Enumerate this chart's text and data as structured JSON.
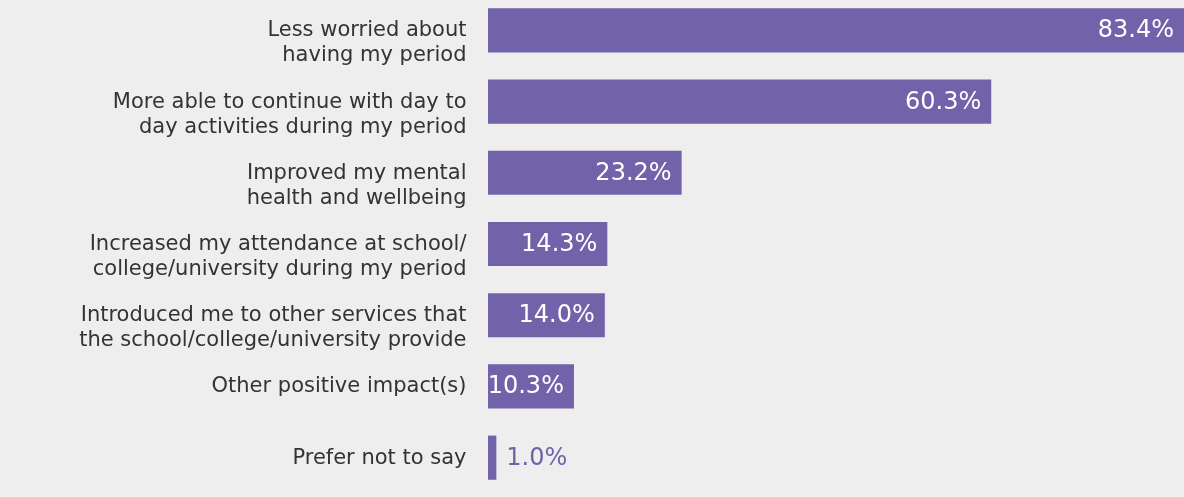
{
  "chart_data": {
    "type": "bar",
    "orientation": "horizontal",
    "categories": [
      "Less worried about having my period",
      "More able to continue with day to day activities during my period",
      "Improved my mental health and wellbeing",
      "Increased my attendance at school/ college/university during my period",
      "Introduced me to other services that the school/college/university provide",
      "Other positive impact(s)",
      "Prefer not to say"
    ],
    "values": [
      83.4,
      60.3,
      23.2,
      14.3,
      14.0,
      10.3,
      1.0
    ],
    "value_labels": [
      "83.4%",
      "60.3%",
      "23.2%",
      "14.3%",
      "14.0%",
      "10.3%",
      "1.0%"
    ],
    "color": "#7262aa"
  }
}
